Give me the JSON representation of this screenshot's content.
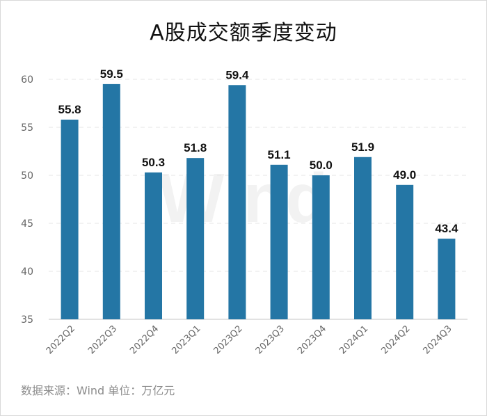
{
  "title": "A股成交额季度变动",
  "watermark": "Wind",
  "source": "数据来源：Wind  单位：万亿元",
  "colors": {
    "bar": "#2476a5",
    "grid": "#e6e6e6",
    "axis": "#d9d9d9",
    "tick": "#666666"
  },
  "chart_data": {
    "type": "bar",
    "title": "A股成交额季度变动",
    "categories": [
      "2022Q2",
      "2022Q3",
      "2022Q4",
      "2023Q1",
      "2023Q2",
      "2023Q3",
      "2023Q4",
      "2024Q1",
      "2024Q2",
      "2024Q3"
    ],
    "values": [
      55.8,
      59.5,
      50.3,
      51.8,
      59.4,
      51.1,
      50.0,
      51.9,
      49.0,
      43.4
    ],
    "value_labels": [
      "55.8",
      "59.5",
      "50.3",
      "51.8",
      "59.4",
      "51.1",
      "50.0",
      "51.9",
      "49.0",
      "43.4"
    ],
    "yticks": [
      35,
      40,
      45,
      50,
      55,
      60
    ],
    "ylim": [
      35,
      60
    ],
    "xlabel": "",
    "ylabel": "",
    "grid": true,
    "legend": "none"
  }
}
